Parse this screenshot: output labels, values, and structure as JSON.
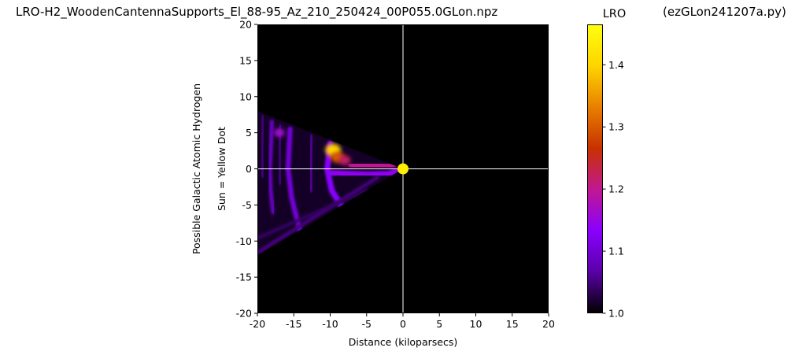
{
  "figure": {
    "title": "LRO-H2_WoodenCantennaSupports_El_88-95_Az_210_250424_00P055.0GLon.npz",
    "script_name": "(ezGLon241207a.py)"
  },
  "chart_data": {
    "type": "heatmap",
    "xlabel": "Distance (kiloparsecs)",
    "ylabel_lines": [
      "Possible Galactic Atomic Hydrogen",
      "Sun = Yellow Dot"
    ],
    "xlim": [
      -20,
      20
    ],
    "ylim": [
      -20,
      20
    ],
    "x_ticks": [
      -20,
      -15,
      -10,
      -5,
      0,
      5,
      10,
      15,
      20
    ],
    "y_ticks": [
      -20,
      -15,
      -10,
      -5,
      0,
      5,
      10,
      15,
      20
    ],
    "background": "#000000",
    "crosshair": {
      "x": 0,
      "y": 0,
      "color": "#ffffff"
    },
    "sun_marker": {
      "x": 0,
      "y": 0,
      "color": "#ffee00"
    },
    "colorbar": {
      "title": "LRO",
      "range": [
        1.0,
        1.465
      ],
      "ticks": [
        1.0,
        1.1,
        1.2,
        1.3,
        1.4
      ],
      "colormap": "gnuplot",
      "stops": [
        "#000000",
        "#5a00a8",
        "#8a00ff",
        "#c01890",
        "#c83000",
        "#e88000",
        "#ffd400",
        "#ffff10"
      ]
    },
    "wedge": {
      "apex": [
        0,
        0
      ],
      "upper_edge_end": [
        -20,
        8
      ],
      "lower_edge_end": [
        -20,
        -12
      ]
    },
    "streaks": [
      {
        "points": [
          [
            -10,
            3.5
          ],
          [
            -10.4,
            0
          ],
          [
            -9.8,
            -3
          ],
          [
            -8.2,
            -5.5
          ],
          [
            -7,
            -6.5
          ]
        ],
        "value": 1.13
      },
      {
        "points": [
          [
            -15.5,
            5.5
          ],
          [
            -15.8,
            0
          ],
          [
            -15.3,
            -4
          ],
          [
            -14.3,
            -8
          ],
          [
            -13.5,
            -11
          ]
        ],
        "value": 1.1
      },
      {
        "points": [
          [
            -18,
            6.5
          ],
          [
            -18.3,
            0
          ],
          [
            -18.2,
            -3
          ],
          [
            -17.8,
            -6
          ]
        ],
        "value": 1.08
      },
      {
        "points": [
          [
            -12.5,
            4.5
          ],
          [
            -12.7,
            1
          ],
          [
            -12.6,
            -3
          ]
        ],
        "value": 1.06
      },
      {
        "points": [
          [
            -16.8,
            6
          ],
          [
            -17,
            2
          ],
          [
            -16.9,
            -2
          ]
        ],
        "value": 1.05
      },
      {
        "points": [
          [
            -19.2,
            7.2
          ],
          [
            -19.4,
            3
          ],
          [
            -19.3,
            -1
          ]
        ],
        "value": 1.05
      },
      {
        "points": [
          [
            -19.8,
            -11.5
          ],
          [
            -3.5,
            -1.2
          ]
        ],
        "value": 1.05
      },
      {
        "points": [
          [
            -19.8,
            -9.5
          ],
          [
            -5,
            -3
          ]
        ],
        "value": 1.04
      },
      {
        "points": [
          [
            -9.8,
            -0.6
          ],
          [
            -5,
            -0.8
          ],
          [
            -2,
            -0.7
          ],
          [
            -0.5,
            -0.2
          ]
        ],
        "value": 1.14
      },
      {
        "points": [
          [
            -7,
            0.6
          ],
          [
            -1.5,
            0.3
          ]
        ],
        "value": 1.2
      }
    ],
    "hotspots": [
      {
        "x": -9.6,
        "y": 2.6,
        "value": 1.4
      },
      {
        "x": -9.0,
        "y": 1.6,
        "value": 1.3
      },
      {
        "x": -8.0,
        "y": 1.2,
        "value": 1.22
      },
      {
        "x": -17.0,
        "y": 5.0,
        "value": 1.16
      }
    ]
  }
}
